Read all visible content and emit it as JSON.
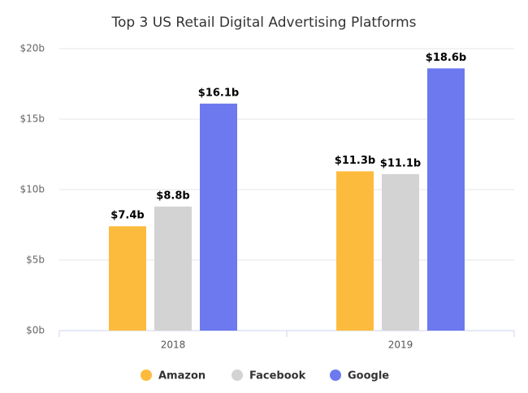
{
  "chart_data": {
    "type": "bar",
    "title": "Top 3 US Retail Digital Advertising Platforms",
    "categories": [
      "2018",
      "2019"
    ],
    "series": [
      {
        "name": "Amazon",
        "color": "#fdbb3e",
        "values": [
          7.4,
          11.3
        ],
        "value_labels": [
          "$7.4b",
          "$11.3b"
        ]
      },
      {
        "name": "Facebook",
        "color": "#d3d3d3",
        "values": [
          8.8,
          11.1
        ],
        "value_labels": [
          "$8.8b",
          "$11.1b"
        ]
      },
      {
        "name": "Google",
        "color": "#6c79ef",
        "values": [
          16.1,
          18.6
        ],
        "value_labels": [
          "$16.1b",
          "$18.6b"
        ]
      }
    ],
    "ylim": [
      0,
      20
    ],
    "yticks": [
      {
        "value": 0,
        "label": "$0b"
      },
      {
        "value": 5,
        "label": "$5b"
      },
      {
        "value": 10,
        "label": "$10b"
      },
      {
        "value": 15,
        "label": "$15b"
      },
      {
        "value": 20,
        "label": "$20b"
      }
    ],
    "grid": true,
    "legend": "bottom"
  }
}
